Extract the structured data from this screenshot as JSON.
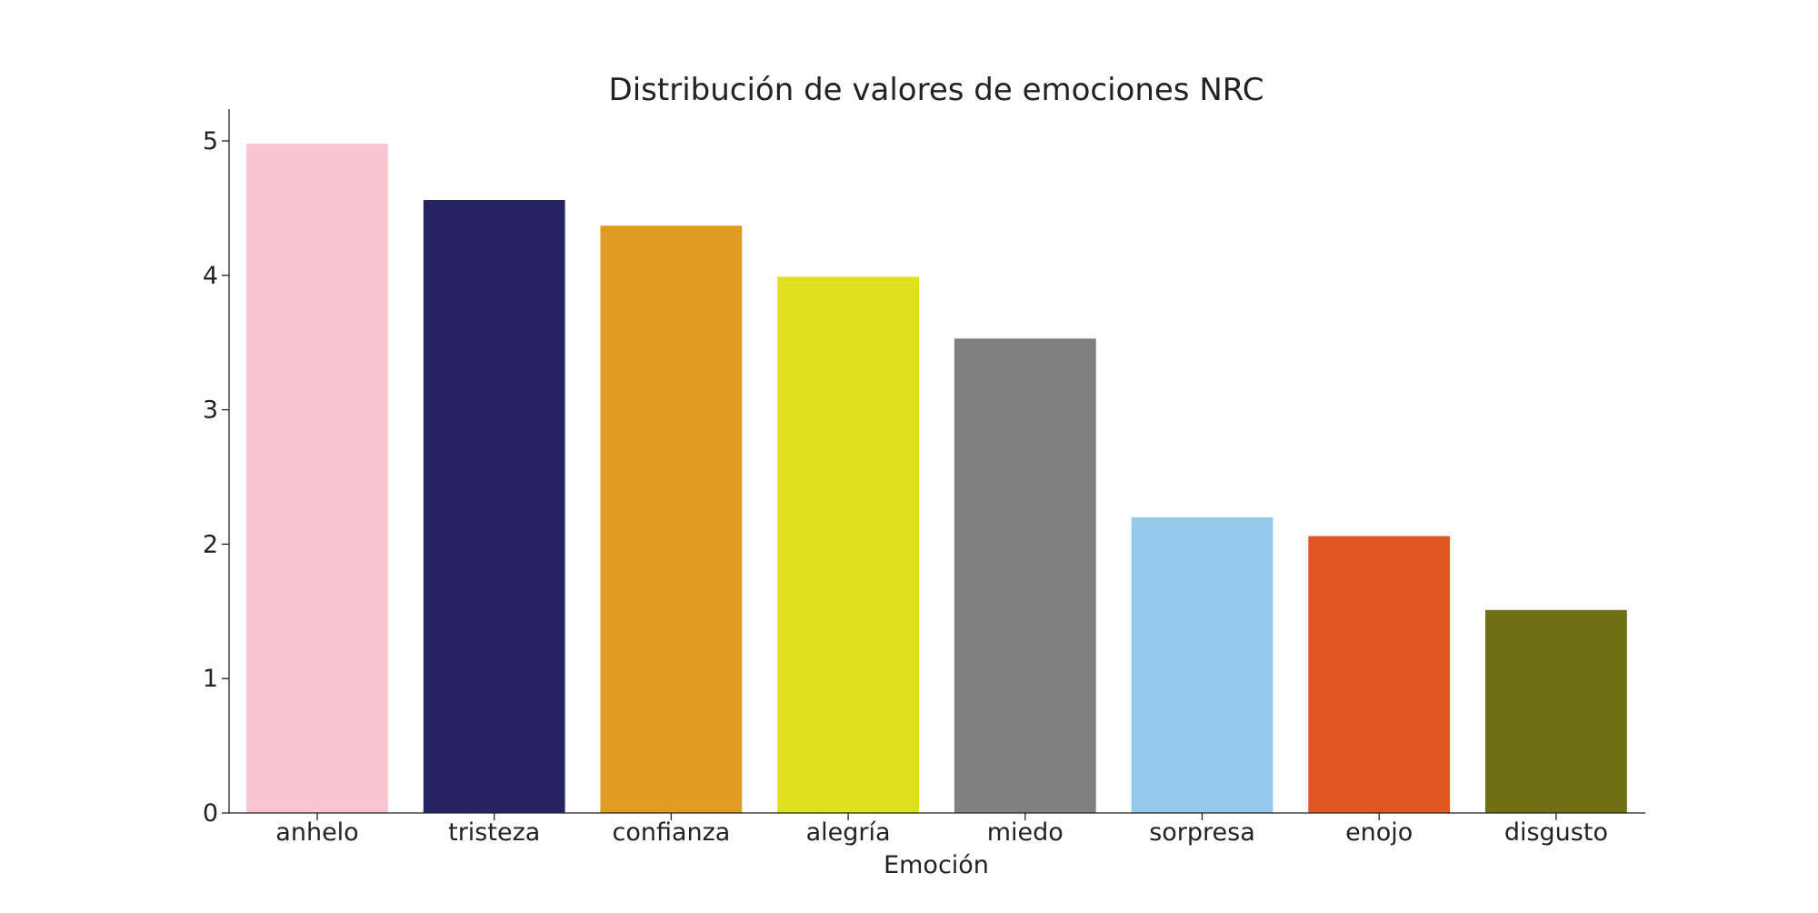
{
  "chart_data": {
    "type": "bar",
    "title": "Distribución de valores de emociones NRC",
    "xlabel": "Emoción",
    "ylabel": "",
    "categories": [
      "anhelo",
      "tristeza",
      "confianza",
      "alegría",
      "miedo",
      "sorpresa",
      "enojo",
      "disgusto"
    ],
    "values": [
      4.98,
      4.56,
      4.37,
      3.99,
      3.53,
      2.2,
      2.06,
      1.51
    ],
    "colors": [
      "#f7c6d0",
      "#252361",
      "#e09c22",
      "#dfe01f",
      "#808080",
      "#95caec",
      "#e05622",
      "#6f6f14"
    ],
    "ylim": [
      0,
      5.25
    ],
    "yticks": [
      "0",
      "1",
      "2",
      "3",
      "4",
      "5"
    ],
    "grid": false,
    "legend": "none"
  }
}
